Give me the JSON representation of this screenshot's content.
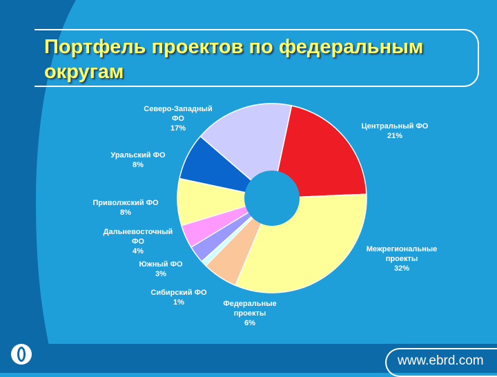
{
  "slide": {
    "title": "Портфель проектов по федеральным округам",
    "footer_url": "www.ebrd.com"
  },
  "colors": {
    "background": "#1f9fd9",
    "title": "#ffff66",
    "dark_band": "#0d6aa8"
  },
  "chart_data": {
    "type": "pie",
    "title": "",
    "slices": [
      {
        "label": "Центральный ФО 21%",
        "name": "Центральный ФО",
        "pct": "21%",
        "value": 21,
        "color": "#ee1c25"
      },
      {
        "label": "Межрегиональные проекты 32%",
        "name": "Межрегиональные проекты",
        "pct": "32%",
        "value": 32,
        "color": "#ffff99"
      },
      {
        "label": "Федеральные проекты 6%",
        "name": "Федеральные проекты",
        "pct": "6%",
        "value": 6,
        "color": "#fbc79a"
      },
      {
        "label": "Сибирский ФО 1%",
        "name": "Сибирский ФО",
        "pct": "1%",
        "value": 1,
        "color": "#ccffff"
      },
      {
        "label": "Южный ФО 3%",
        "name": "Южный ФО",
        "pct": "3%",
        "value": 3,
        "color": "#9a99ff"
      },
      {
        "label": "Дальневосточный ФО 4%",
        "name": "Дальневосточный ФО",
        "pct": "4%",
        "value": 4,
        "color": "#ff99ff"
      },
      {
        "label": "Приволжский ФО 8%",
        "name": "Приволжский ФО",
        "pct": "8%",
        "value": 8,
        "color": "#ffff99"
      },
      {
        "label": "Уральский ФО 8%",
        "name": "Уральский ФО",
        "pct": "8%",
        "value": 8,
        "color": "#0a66cc"
      },
      {
        "label": "Северо-Западный ФО 17%",
        "name": "Северо-Западный ФО",
        "pct": "17%",
        "value": 17,
        "color": "#ccccff"
      }
    ],
    "labels": [
      {
        "lines": [
          "Центральный ФО",
          "21%"
        ]
      },
      {
        "lines": [
          "Межрегиональные",
          "проекты",
          "32%"
        ]
      },
      {
        "lines": [
          "Федеральные",
          "проекты",
          "6%"
        ]
      },
      {
        "lines": [
          "Сибирский ФО",
          "1%"
        ]
      },
      {
        "lines": [
          "Южный ФО",
          "3%"
        ]
      },
      {
        "lines": [
          "Дальневосточный",
          "ФО",
          "4%"
        ]
      },
      {
        "lines": [
          "Приволжский ФО",
          "8%"
        ]
      },
      {
        "lines": [
          "Уральский ФО",
          "8%"
        ]
      },
      {
        "lines": [
          "Северо-Западный",
          "ФО",
          "17%"
        ]
      }
    ],
    "legend": "none"
  }
}
